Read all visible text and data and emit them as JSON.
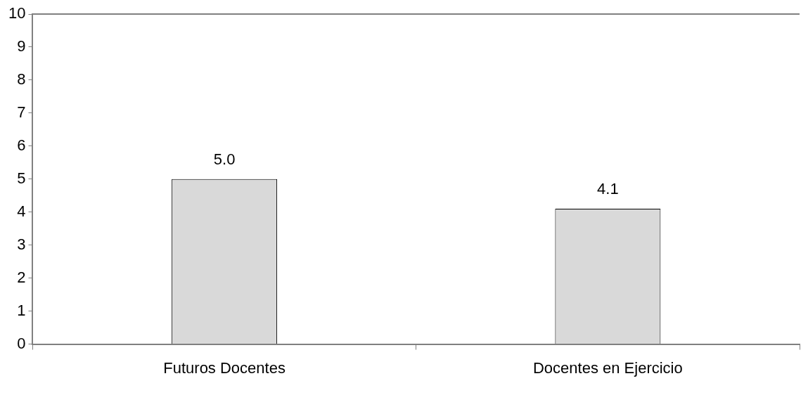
{
  "chart_data": {
    "type": "bar",
    "categories": [
      "Futuros Docentes",
      "Docentes en Ejercicio"
    ],
    "values": [
      5.0,
      4.1
    ],
    "value_labels": [
      "5.0",
      "4.1"
    ],
    "color": "#d9d9d9",
    "ylim": [
      0,
      10
    ],
    "yticks": [
      0,
      1,
      2,
      3,
      4,
      5,
      6,
      7,
      8,
      9,
      10
    ],
    "grid": false,
    "legend": false
  }
}
